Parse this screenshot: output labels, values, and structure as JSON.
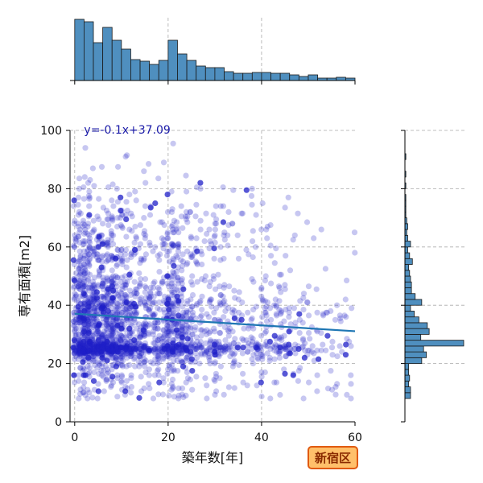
{
  "chart_data": {
    "type": "scatter",
    "title": "",
    "xlabel": "築年数[年]",
    "ylabel": "専有面積[m2]",
    "xlim": [
      -1,
      60
    ],
    "ylim": [
      0,
      100
    ],
    "x_ticks": [
      0,
      20,
      40,
      60
    ],
    "y_ticks": [
      0,
      20,
      40,
      60,
      80,
      100
    ],
    "grid": true,
    "colors": {
      "points": "#1f1fc8",
      "regression": "#1f77b4",
      "hist_fill": "#4f8fbf",
      "grid": "#aaaaaa"
    },
    "regression": {
      "slope": -0.1,
      "intercept": 37.09,
      "label": "y=-0.1x+37.09"
    },
    "scatter_point_count": 2600,
    "scatter_point_opacity": 0.25,
    "marginal_x_hist": {
      "bin_edges": [
        0,
        2,
        4,
        6,
        8,
        10,
        12,
        14,
        16,
        18,
        20,
        22,
        24,
        26,
        28,
        30,
        32,
        34,
        36,
        38,
        40,
        42,
        44,
        46,
        48,
        50,
        52,
        54,
        56,
        58,
        60
      ],
      "counts": [
        152,
        146,
        94,
        132,
        100,
        78,
        52,
        48,
        40,
        50,
        100,
        66,
        50,
        36,
        32,
        32,
        22,
        18,
        18,
        20,
        20,
        18,
        18,
        14,
        10,
        14,
        6,
        6,
        8,
        6
      ]
    },
    "marginal_y_hist": {
      "bin_edges": [
        8,
        10,
        12,
        14,
        16,
        18,
        20,
        22,
        24,
        26,
        28,
        30,
        32,
        34,
        36,
        38,
        40,
        42,
        44,
        46,
        48,
        50,
        52,
        54,
        56,
        58,
        60,
        62,
        64,
        66,
        68,
        70,
        72,
        74,
        76,
        78,
        80,
        82,
        84,
        86,
        88,
        90,
        92,
        94,
        96,
        98,
        100
      ],
      "counts": [
        6,
        6,
        4,
        5,
        4,
        4,
        18,
        23,
        20,
        63,
        17,
        26,
        24,
        15,
        10,
        6,
        18,
        11,
        7,
        7,
        6,
        5,
        4,
        8,
        5,
        3,
        6,
        3,
        2,
        3,
        2,
        1,
        1,
        1,
        1,
        0,
        1,
        0,
        1,
        0,
        0,
        1,
        0,
        0,
        0,
        0
      ]
    }
  },
  "badge": {
    "label": "新宿区",
    "fill": "#ffc06a",
    "border": "#e05a10"
  }
}
